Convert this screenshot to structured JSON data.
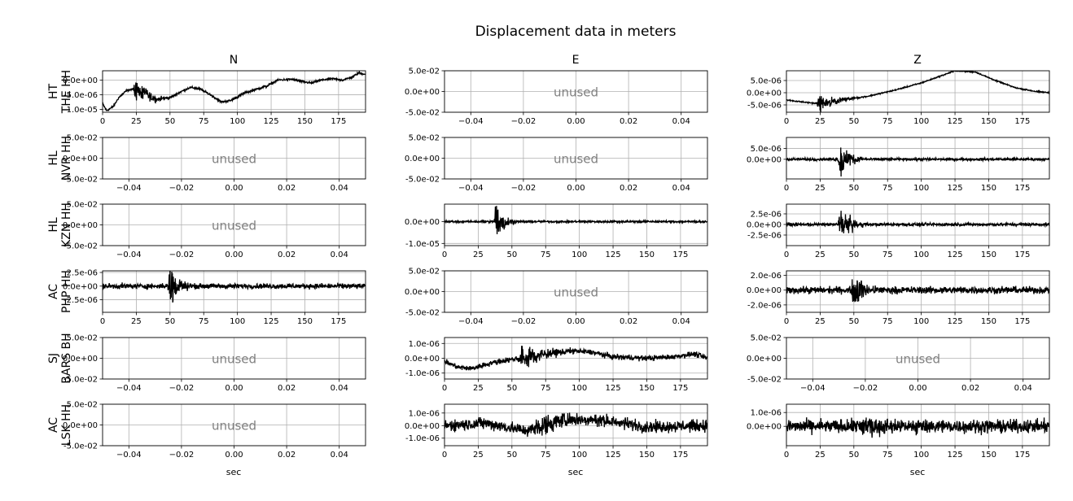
{
  "figure": {
    "title": "Displacement data in meters",
    "column_titles": [
      "N",
      "E",
      "Z"
    ],
    "xlabel": "sec",
    "unused_label": "unused"
  },
  "chart_data": [
    {
      "type": "line",
      "row": 0,
      "col": 0,
      "station_net": "HT",
      "station": "THE HH",
      "component": "N",
      "used": true,
      "xlim": [
        0,
        195
      ],
      "ylim": [
        -1.1e-05,
        3.2e-06
      ],
      "xticks": [
        "0",
        "25",
        "50",
        "75",
        "100",
        "125",
        "150",
        "175"
      ],
      "yticks": [
        "0.0e+00",
        "-5.0e-06",
        "-1.0e-05"
      ],
      "ytick_values": [
        0,
        -5e-06,
        -1e-05
      ],
      "trend": [
        [
          0,
          -8e-06
        ],
        [
          3,
          -1.05e-05
        ],
        [
          8,
          -9e-06
        ],
        [
          12,
          -6e-06
        ],
        [
          18,
          -3.5e-06
        ],
        [
          25,
          -3e-06
        ],
        [
          32,
          -5e-06
        ],
        [
          40,
          -6.5e-06
        ],
        [
          50,
          -6e-06
        ],
        [
          58,
          -4e-06
        ],
        [
          65,
          -2.5e-06
        ],
        [
          72,
          -3e-06
        ],
        [
          80,
          -5e-06
        ],
        [
          88,
          -7.5e-06
        ],
        [
          95,
          -7e-06
        ],
        [
          105,
          -4.5e-06
        ],
        [
          115,
          -3e-06
        ],
        [
          122,
          -2e-06
        ],
        [
          130,
          0
        ],
        [
          140,
          3e-07
        ],
        [
          148,
          -5e-07
        ],
        [
          155,
          -1e-06
        ],
        [
          162,
          0
        ],
        [
          170,
          5e-07
        ],
        [
          178,
          0
        ],
        [
          185,
          1e-06
        ],
        [
          190,
          2.5e-06
        ],
        [
          195,
          2e-06
        ]
      ],
      "bursts": [
        {
          "center": 25,
          "width": 10,
          "amp": 3.5e-06
        }
      ],
      "noise_amp": 3e-07
    },
    {
      "type": "line",
      "row": 0,
      "col": 1,
      "component": "E",
      "used": false,
      "xlim": [
        -0.05,
        0.05
      ],
      "ylim": [
        -0.05,
        0.05
      ],
      "xticks": [
        "−0.04",
        "−0.02",
        "0.00",
        "0.02",
        "0.04"
      ],
      "yticks": [
        "5.0e-02",
        "0.0e+00",
        "-5.0e-02"
      ]
    },
    {
      "type": "line",
      "row": 0,
      "col": 2,
      "component": "Z",
      "used": true,
      "xlim": [
        0,
        195
      ],
      "ylim": [
        -8e-06,
        9e-06
      ],
      "xticks": [
        "0",
        "25",
        "50",
        "75",
        "100",
        "125",
        "150",
        "175"
      ],
      "yticks": [
        "5.0e-06",
        "0.0e+00",
        "-5.0e-06"
      ],
      "ytick_values": [
        5e-06,
        0,
        -5e-06
      ],
      "trend": [
        [
          0,
          -3e-06
        ],
        [
          15,
          -4e-06
        ],
        [
          25,
          -4.5e-06
        ],
        [
          40,
          -3e-06
        ],
        [
          60,
          -1.5e-06
        ],
        [
          80,
          1e-06
        ],
        [
          100,
          4e-06
        ],
        [
          115,
          7e-06
        ],
        [
          125,
          9e-06
        ],
        [
          140,
          8.5e-06
        ],
        [
          155,
          5e-06
        ],
        [
          170,
          2e-06
        ],
        [
          185,
          5e-07
        ],
        [
          195,
          0
        ]
      ],
      "bursts": [
        {
          "center": 25,
          "width": 12,
          "amp": 3e-06
        }
      ],
      "noise_amp": 2e-07
    },
    {
      "type": "line",
      "row": 1,
      "col": 0,
      "station_net": "HL",
      "station": "NVR HH",
      "component": "N",
      "used": false,
      "xlim": [
        -0.05,
        0.05
      ],
      "ylim": [
        -0.05,
        0.05
      ],
      "xticks": [
        "−0.04",
        "−0.02",
        "0.00",
        "0.02",
        "0.04"
      ],
      "yticks": [
        "5.0e-02",
        "0.0e+00",
        "-5.0e-02"
      ]
    },
    {
      "type": "line",
      "row": 1,
      "col": 1,
      "component": "E",
      "used": false,
      "xlim": [
        -0.05,
        0.05
      ],
      "ylim": [
        -0.05,
        0.05
      ],
      "xticks": [
        "−0.04",
        "−0.02",
        "0.00",
        "0.02",
        "0.04"
      ],
      "yticks": [
        "5.0e-02",
        "0.0e+00",
        "-5.0e-02"
      ]
    },
    {
      "type": "line",
      "row": 1,
      "col": 2,
      "component": "Z",
      "used": true,
      "xlim": [
        0,
        195
      ],
      "ylim": [
        -9e-06,
        1e-05
      ],
      "xticks": [
        "0",
        "25",
        "50",
        "75",
        "100",
        "125",
        "150",
        "175"
      ],
      "yticks": [
        "5.0e-06",
        "0.0e+00"
      ],
      "ytick_values": [
        5e-06,
        0
      ],
      "trend": [
        [
          0,
          0
        ],
        [
          195,
          0
        ]
      ],
      "bursts": [
        {
          "center": 40,
          "width": 8,
          "amp": 7e-06
        }
      ],
      "noise_amp": 5e-07
    },
    {
      "type": "line",
      "row": 2,
      "col": 0,
      "station_net": "HL",
      "station": "KZN HH",
      "component": "N",
      "used": false,
      "xlim": [
        -0.05,
        0.05
      ],
      "ylim": [
        -0.05,
        0.05
      ],
      "xticks": [
        "−0.04",
        "−0.02",
        "0.00",
        "0.02",
        "0.04"
      ],
      "yticks": [
        "5.0e-02",
        "0.0e+00",
        "-5.0e-02"
      ]
    },
    {
      "type": "line",
      "row": 2,
      "col": 1,
      "component": "E",
      "used": true,
      "xlim": [
        0,
        195
      ],
      "ylim": [
        -1.1e-05,
        8e-06
      ],
      "xticks": [
        "0",
        "25",
        "50",
        "75",
        "100",
        "125",
        "150",
        "175"
      ],
      "yticks": [
        "0.0e+00",
        "-1.0e-05"
      ],
      "ytick_values": [
        0,
        -1e-05
      ],
      "trend": [
        [
          0,
          0
        ],
        [
          195,
          0
        ]
      ],
      "bursts": [
        {
          "center": 38,
          "width": 6,
          "amp": 9e-06
        }
      ],
      "noise_amp": 4e-07
    },
    {
      "type": "line",
      "row": 2,
      "col": 2,
      "component": "Z",
      "used": true,
      "xlim": [
        0,
        195
      ],
      "ylim": [
        -5e-06,
        4.8e-06
      ],
      "xticks": [
        "0",
        "25",
        "50",
        "75",
        "100",
        "125",
        "150",
        "175"
      ],
      "yticks": [
        "2.5e-06",
        "0.0e+00",
        "-2.5e-06"
      ],
      "ytick_values": [
        2.5e-06,
        0,
        -2.5e-06
      ],
      "trend": [
        [
          0,
          0
        ],
        [
          195,
          0
        ]
      ],
      "bursts": [
        {
          "center": 40,
          "width": 8,
          "amp": 3.5e-06
        }
      ],
      "noise_amp": 3e-07
    },
    {
      "type": "line",
      "row": 3,
      "col": 0,
      "station_net": "AC",
      "station": "PHP HH",
      "component": "N",
      "used": true,
      "xlim": [
        0,
        195
      ],
      "ylim": [
        -4.8e-06,
        2.8e-06
      ],
      "xticks": [
        "0",
        "25",
        "50",
        "75",
        "100",
        "125",
        "150",
        "175"
      ],
      "yticks": [
        "2.5e-06",
        "0.0e+00",
        "-2.5e-06"
      ],
      "ytick_values": [
        2.5e-06,
        0,
        -2.5e-06
      ],
      "trend": [
        [
          0,
          0
        ],
        [
          195,
          0
        ]
      ],
      "bursts": [
        {
          "center": 50,
          "width": 7,
          "amp": 3.5e-06
        }
      ],
      "noise_amp": 4e-07
    },
    {
      "type": "line",
      "row": 3,
      "col": 1,
      "component": "E",
      "used": false,
      "xlim": [
        -0.05,
        0.05
      ],
      "ylim": [
        -0.05,
        0.05
      ],
      "xticks": [
        "−0.04",
        "−0.02",
        "0.00",
        "0.02",
        "0.04"
      ],
      "yticks": [
        "5.0e-02",
        "0.0e+00",
        "-5.0e-02"
      ]
    },
    {
      "type": "line",
      "row": 3,
      "col": 2,
      "component": "Z",
      "used": true,
      "xlim": [
        0,
        195
      ],
      "ylim": [
        -3e-06,
        2.6e-06
      ],
      "xticks": [
        "0",
        "25",
        "50",
        "75",
        "100",
        "125",
        "150",
        "175"
      ],
      "yticks": [
        "2.0e-06",
        "0.0e+00",
        "-2.0e-06"
      ],
      "ytick_values": [
        2e-06,
        0,
        -2e-06
      ],
      "trend": [
        [
          0,
          0
        ],
        [
          195,
          0
        ]
      ],
      "bursts": [
        {
          "center": 50,
          "width": 8,
          "amp": 2.5e-06
        }
      ],
      "noise_amp": 4e-07
    },
    {
      "type": "line",
      "row": 4,
      "col": 0,
      "station_net": "SJ",
      "station": "BARS BH",
      "component": "N",
      "used": false,
      "xlim": [
        -0.05,
        0.05
      ],
      "ylim": [
        -0.05,
        0.05
      ],
      "xticks": [
        "−0.04",
        "−0.02",
        "0.00",
        "0.02",
        "0.04"
      ],
      "yticks": [
        "5.0e-02",
        "0.0e+00",
        "-5.0e-02"
      ]
    },
    {
      "type": "line",
      "row": 4,
      "col": 1,
      "component": "E",
      "used": true,
      "xlim": [
        0,
        195
      ],
      "ylim": [
        -1.4e-06,
        1.4e-06
      ],
      "xticks": [
        "0",
        "25",
        "50",
        "75",
        "100",
        "125",
        "150",
        "175"
      ],
      "yticks": [
        "1.0e-06",
        "0.0e+00",
        "-1.0e-06"
      ],
      "ytick_values": [
        1e-06,
        0,
        -1e-06
      ],
      "trend": [
        [
          0,
          -2e-07
        ],
        [
          10,
          -6e-07
        ],
        [
          20,
          -7e-07
        ],
        [
          35,
          -3e-07
        ],
        [
          55,
          0
        ],
        [
          75,
          3e-07
        ],
        [
          95,
          5e-07
        ],
        [
          110,
          4e-07
        ],
        [
          125,
          1e-07
        ],
        [
          150,
          0
        ],
        [
          170,
          1e-07
        ],
        [
          185,
          3e-07
        ],
        [
          195,
          0
        ]
      ],
      "bursts": [
        {
          "center": 58,
          "width": 15,
          "amp": 8e-07
        }
      ],
      "noise_amp": 1.5e-07
    },
    {
      "type": "line",
      "row": 4,
      "col": 2,
      "component": "Z",
      "used": false,
      "xlim": [
        -0.05,
        0.05
      ],
      "ylim": [
        -0.05,
        0.05
      ],
      "xticks": [
        "−0.04",
        "−0.02",
        "0.00",
        "0.02",
        "0.04"
      ],
      "yticks": [
        "5.0e-02",
        "0.0e+00",
        "-5.0e-02"
      ]
    },
    {
      "type": "line",
      "row": 5,
      "col": 0,
      "station_net": "AC",
      "station": "LSK HH",
      "component": "N",
      "used": false,
      "xlim": [
        -0.05,
        0.05
      ],
      "ylim": [
        -0.05,
        0.05
      ],
      "xticks": [
        "−0.04",
        "−0.02",
        "0.00",
        "0.02",
        "0.04"
      ],
      "yticks": [
        "5.0e-02",
        "0.0e+00",
        "-5.0e-02"
      ]
    },
    {
      "type": "line",
      "row": 5,
      "col": 1,
      "component": "E",
      "used": true,
      "xlim": [
        0,
        195
      ],
      "ylim": [
        -1.6e-06,
        1.7e-06
      ],
      "xticks": [
        "0",
        "25",
        "50",
        "75",
        "100",
        "125",
        "150",
        "175"
      ],
      "yticks": [
        "1.0e-06",
        "0.0e+00",
        "-1.0e-06"
      ],
      "ytick_values": [
        1e-06,
        0,
        -1e-06
      ],
      "trend": [
        [
          0,
          0
        ],
        [
          30,
          2e-07
        ],
        [
          60,
          -4e-07
        ],
        [
          90,
          5e-07
        ],
        [
          120,
          4e-07
        ],
        [
          150,
          -1e-07
        ],
        [
          195,
          0
        ]
      ],
      "bursts": [
        {
          "center": 70,
          "width": 25,
          "amp": 7e-07
        }
      ],
      "noise_amp": 4e-07
    },
    {
      "type": "line",
      "row": 5,
      "col": 2,
      "component": "Z",
      "used": true,
      "xlim": [
        0,
        195
      ],
      "ylim": [
        -1.4e-06,
        1.6e-06
      ],
      "xticks": [
        "0",
        "25",
        "50",
        "75",
        "100",
        "125",
        "150",
        "175"
      ],
      "yticks": [
        "1.0e-06",
        "0.0e+00"
      ],
      "ytick_values": [
        1e-06,
        0
      ],
      "trend": [
        [
          0,
          0
        ],
        [
          195,
          0
        ]
      ],
      "bursts": [
        {
          "center": 58,
          "width": 25,
          "amp": 6e-07
        }
      ],
      "noise_amp": 4e-07
    }
  ]
}
